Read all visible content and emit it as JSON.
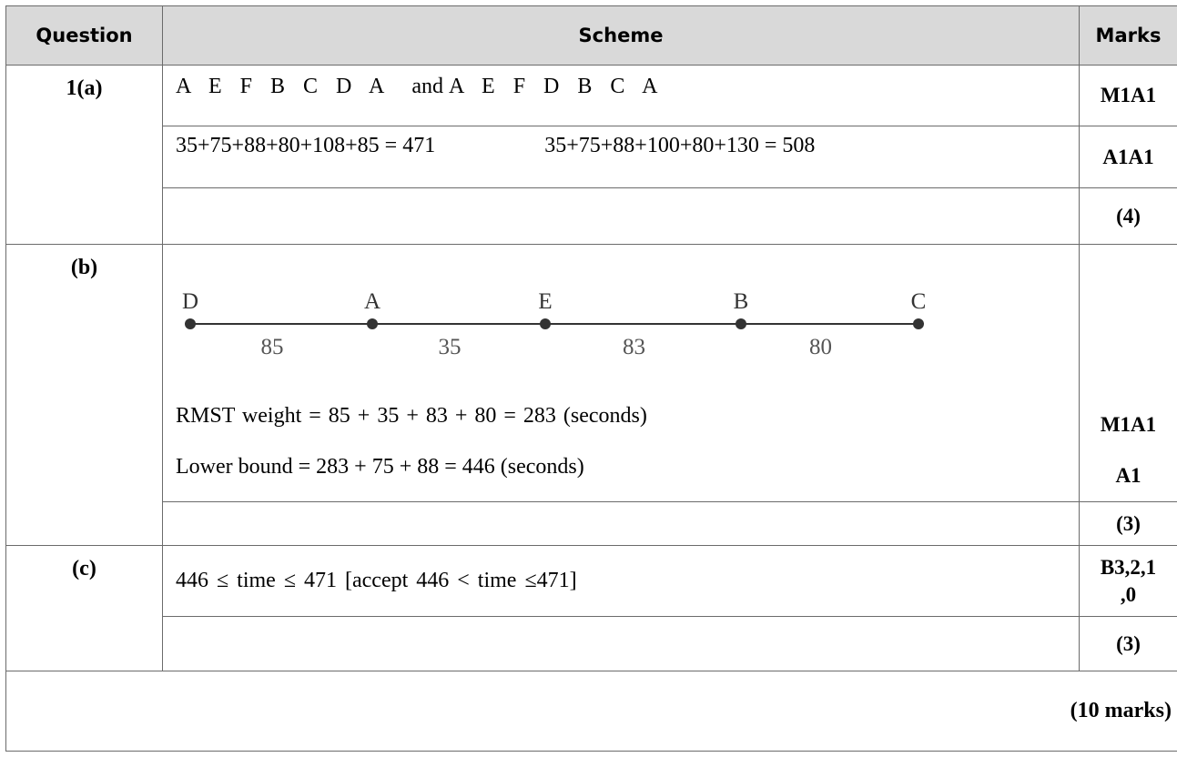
{
  "headers": {
    "question": "Question",
    "scheme": "Scheme",
    "marks": "Marks"
  },
  "rows": {
    "r1a": {
      "question": "1(a)",
      "line1_left": "A E F B C D A",
      "line1_join": "and",
      "line1_right": "A E F D B C A",
      "line1_marks": "M1A1",
      "line2_left": "35+75+88+80+108+85 = 471",
      "line2_right": "35+75+88+100+80+130 = 508",
      "line2_marks": "A1A1",
      "subtotal": "(4)"
    },
    "r1b": {
      "question": "(b)",
      "diagram": {
        "nodes": [
          "D",
          "A",
          "E",
          "B",
          "C"
        ],
        "weights": [
          "85",
          "35",
          "83",
          "80"
        ]
      },
      "line1": "RMST weight = 85 + 35 + 83 + 80 = 283 (seconds)",
      "line1_marks": "M1A1",
      "line2": "Lower bound = 283 + 75 + 88 = 446 (seconds)",
      "line2_marks": "A1",
      "subtotal": "(3)"
    },
    "r1c": {
      "question": "(c)",
      "line1": "446 ≤ time ≤ 471 [accept 446 < time ≤471]",
      "line1_marks_a": "B3,2,1",
      "line1_marks_b": ",0",
      "subtotal": "(3)"
    }
  },
  "total": "(10 marks)"
}
